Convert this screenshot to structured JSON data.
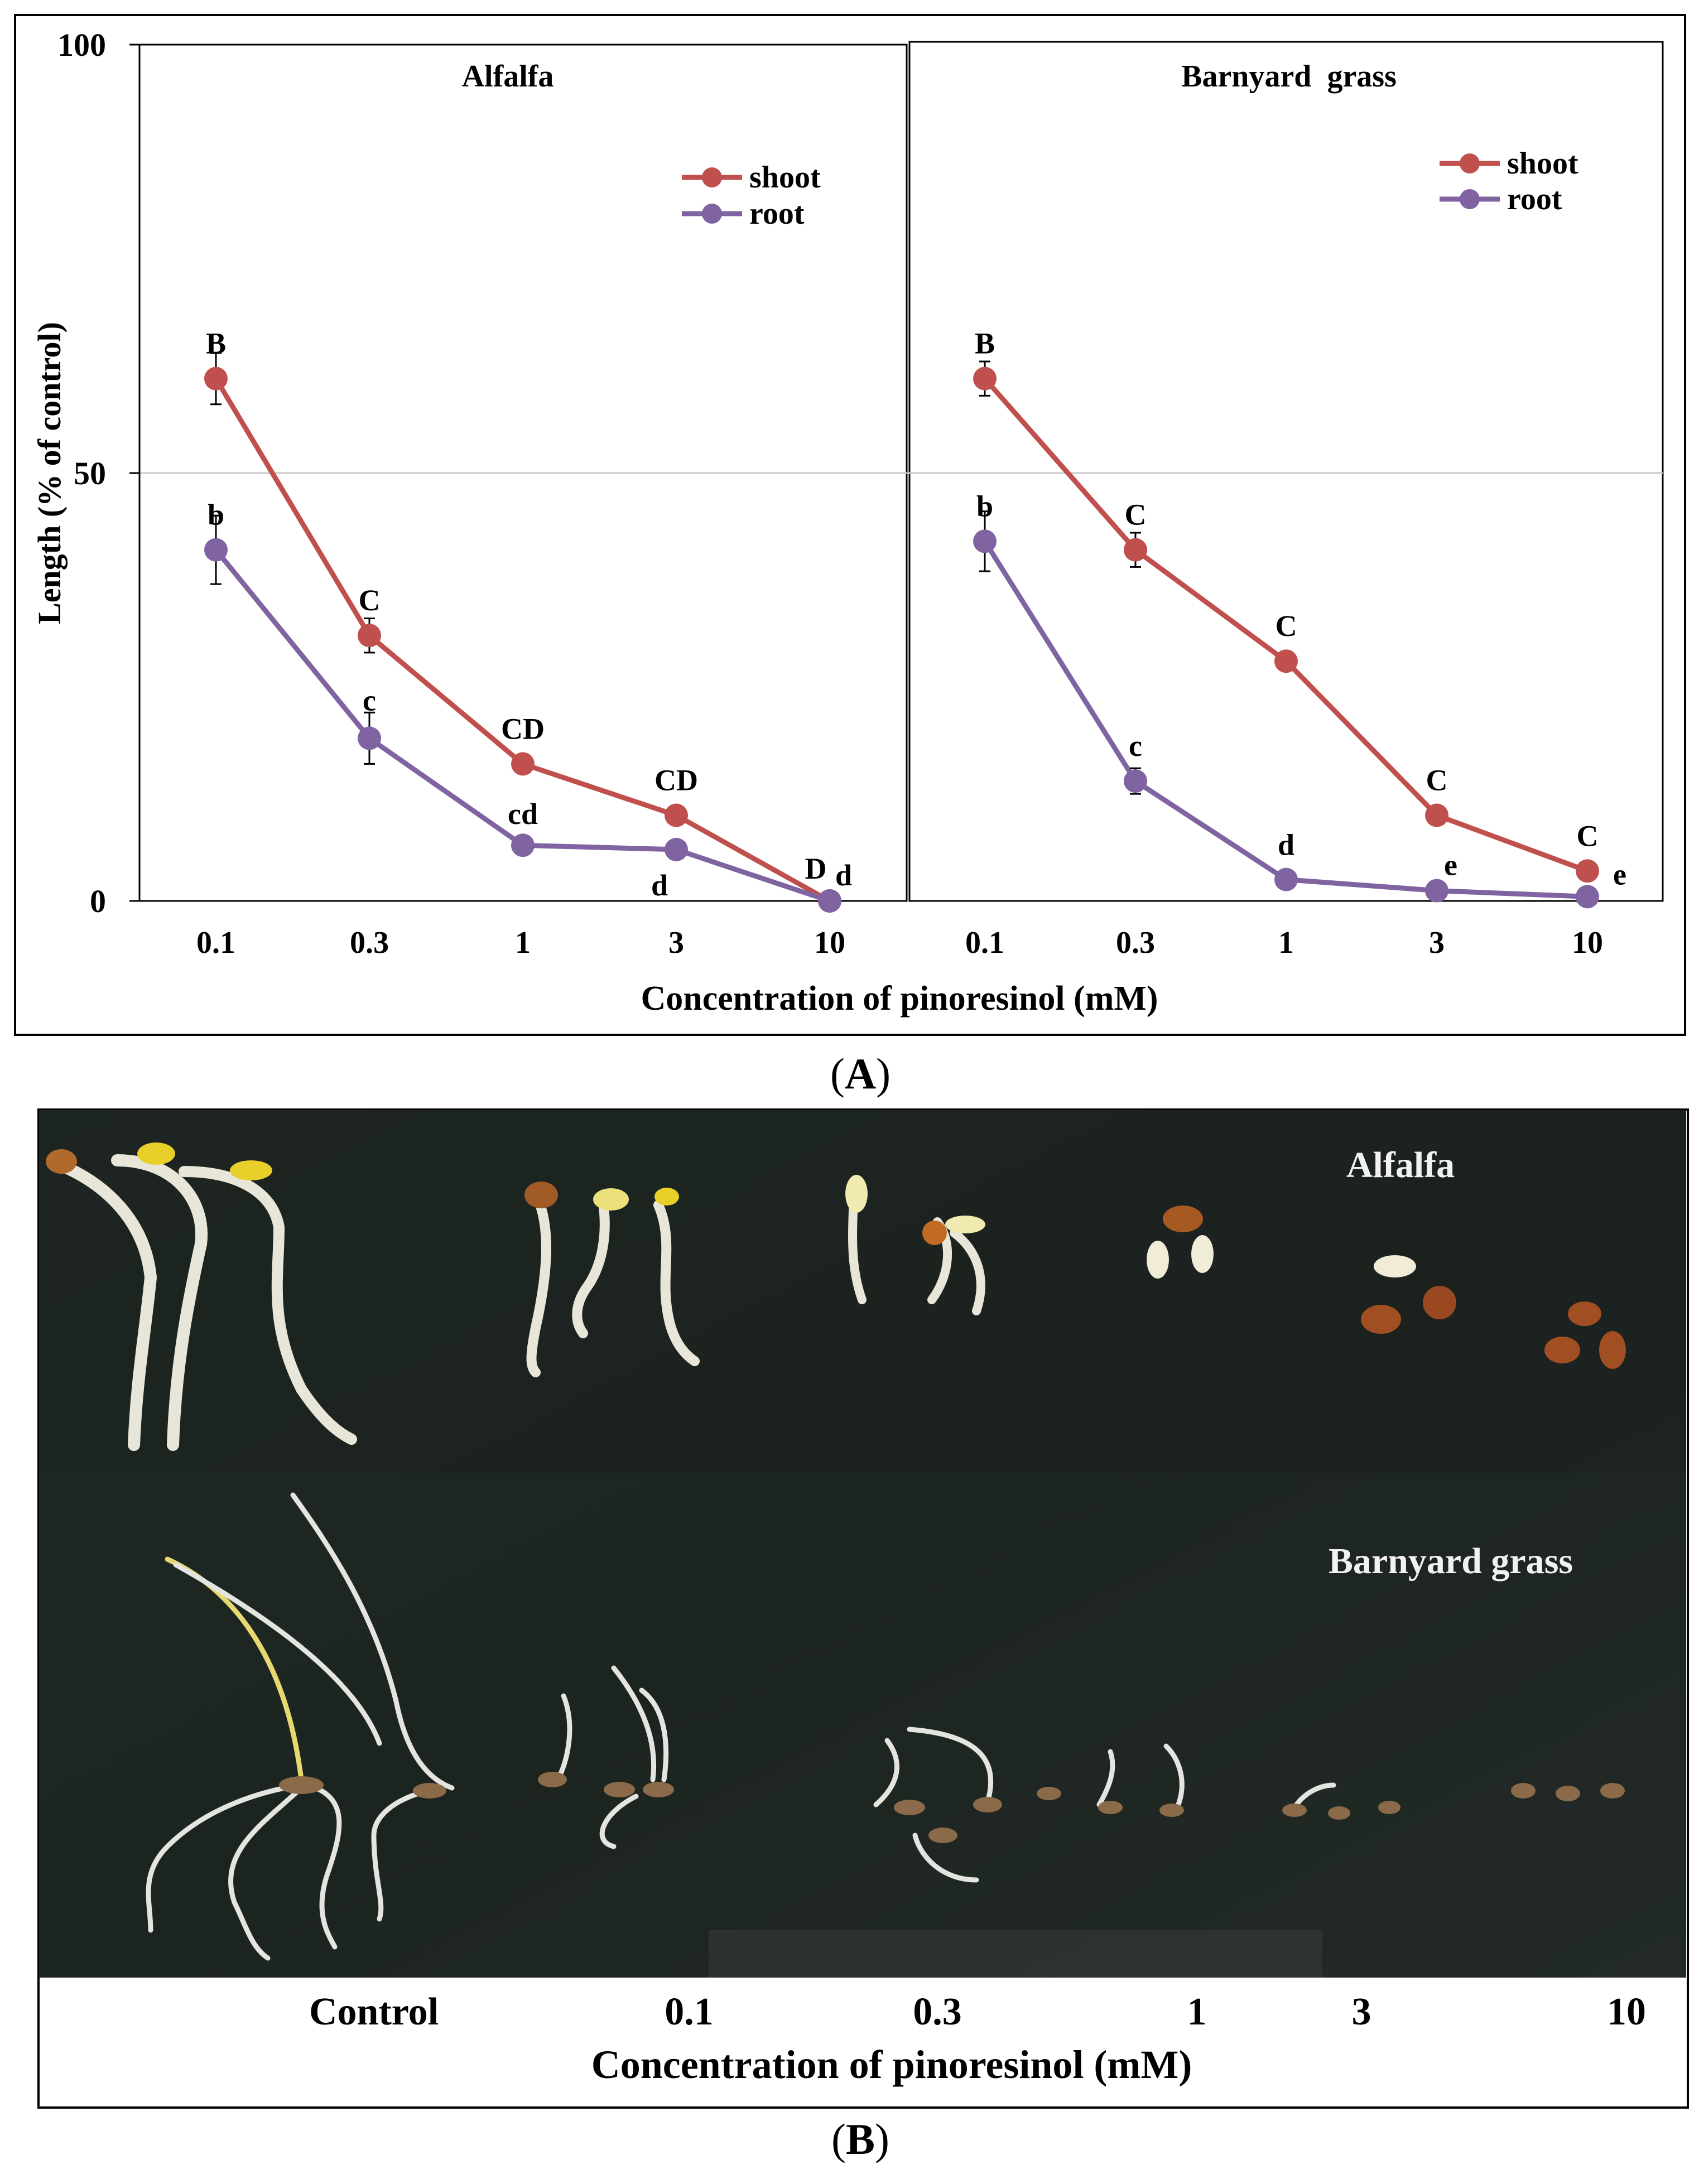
{
  "chart_data": [
    {
      "type": "line",
      "title": "Alfalfa",
      "xlabel": "Concentration of pinoresinol (mM)",
      "ylabel": "Length (% of control)",
      "categories": [
        "0.1",
        "0.3",
        "1",
        "3",
        "10"
      ],
      "ylim": [
        0,
        100
      ],
      "yticks": [
        "0",
        "50",
        "100"
      ],
      "gridlines": [
        50
      ],
      "legend_position": "top-right",
      "series": [
        {
          "name": "shoot",
          "color": "#c0504d",
          "values": [
            61,
            31,
            16,
            10,
            0
          ],
          "errors": [
            3,
            2,
            1,
            0,
            0
          ],
          "labels": [
            "B",
            "C",
            "CD",
            "CD",
            "D"
          ]
        },
        {
          "name": "root",
          "color": "#8064a2",
          "values": [
            41,
            19,
            6.5,
            6,
            0
          ],
          "errors": [
            4,
            3,
            0,
            0,
            0
          ],
          "labels": [
            "b",
            "c",
            "cd",
            "d",
            "d"
          ]
        }
      ]
    },
    {
      "type": "line",
      "title": "Barnyard  grass",
      "xlabel": "Concentration of pinoresinol (mM)",
      "ylabel": "Length (% of control)",
      "categories": [
        "0.1",
        "0.3",
        "1",
        "3",
        "10"
      ],
      "ylim": [
        0,
        100
      ],
      "gridlines": [
        50
      ],
      "legend_position": "top-right",
      "series": [
        {
          "name": "shoot",
          "color": "#c0504d",
          "values": [
            61,
            41,
            28,
            10,
            3.5
          ],
          "errors": [
            2,
            2,
            0,
            0,
            0
          ],
          "labels": [
            "B",
            "C",
            "C",
            "C",
            "C"
          ]
        },
        {
          "name": "root",
          "color": "#8064a2",
          "values": [
            42,
            14,
            2.5,
            1.2,
            0.5
          ],
          "errors": [
            3.5,
            1.5,
            0,
            0,
            0
          ],
          "labels": [
            "b",
            "c",
            "d",
            "e",
            "e"
          ]
        }
      ]
    }
  ],
  "figure": {
    "shared_xlabel": "Concentration of pinoresinol (mM)",
    "panel_a_label": "A",
    "panel_b_label": "B"
  },
  "photo": {
    "species_top": "Alfalfa",
    "species_bottom": "Barnyard grass",
    "column_labels": [
      "Control",
      "0.1",
      "0.3",
      "1",
      "3",
      "10"
    ],
    "xlabel": "Concentration of pinoresinol (mM)",
    "background": "#1d2421"
  }
}
